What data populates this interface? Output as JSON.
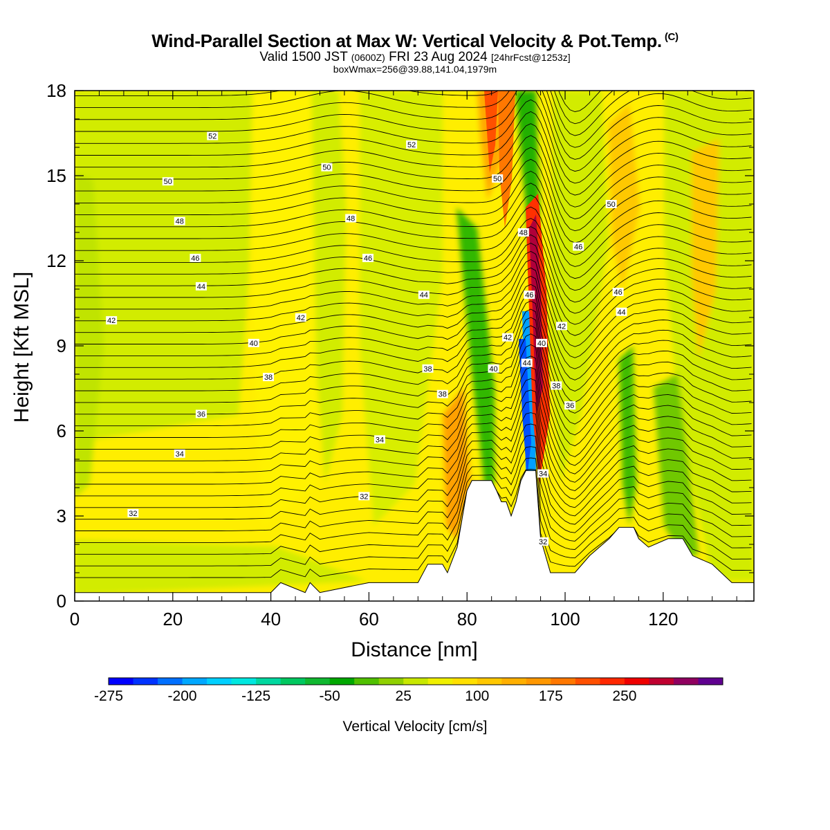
{
  "header": {
    "title": "Wind-Parallel Section at Max W: Vertical Velocity & Pot.Temp.",
    "copyright": "(C)",
    "valid_prefix": "Valid 1500 JST",
    "valid_utc": "(0600Z)",
    "valid_date": "FRI 23 Aug 2024",
    "forecast": "[24hrFcst@1253z]",
    "boxwmax": "boxWmax=256@39.88,141.04,1979m"
  },
  "chart_data": {
    "type": "heatmap",
    "xlabel": "Distance [nm]",
    "ylabel": "Height [Kft MSL]",
    "xlim": [
      0,
      138.5
    ],
    "ylim": [
      0,
      18
    ],
    "x_ticks": [
      0,
      20,
      40,
      60,
      80,
      100,
      120
    ],
    "y_ticks": [
      0,
      3,
      6,
      9,
      12,
      15,
      18
    ],
    "colorbar": {
      "title": "Vertical Velocity [cm/s]",
      "tick_labels": [
        "-275",
        "-200",
        "-125",
        "-50",
        "25",
        "100",
        "175",
        "250"
      ],
      "colors": [
        "#0000ff",
        "#0033ff",
        "#0070ff",
        "#00a8ff",
        "#00d0ff",
        "#00e8e0",
        "#00d8a0",
        "#00c860",
        "#10b830",
        "#00a800",
        "#50c000",
        "#90d000",
        "#c8e800",
        "#f0f000",
        "#ffe000",
        "#ffc800",
        "#ffb000",
        "#ff9800",
        "#ff7800",
        "#ff5000",
        "#ff2800",
        "#f00000",
        "#c00030",
        "#900060",
        "#600090"
      ]
    },
    "terrain_profile_kft": [
      [
        0,
        0.3
      ],
      [
        40,
        0.3
      ],
      [
        42,
        0.65
      ],
      [
        47,
        0.3
      ],
      [
        48,
        0.65
      ],
      [
        50,
        0.3
      ],
      [
        60,
        0.65
      ],
      [
        70,
        0.65
      ],
      [
        72,
        1.3
      ],
      [
        75,
        1.3
      ],
      [
        76,
        1.0
      ],
      [
        78,
        1.9
      ],
      [
        80,
        3.9
      ],
      [
        81,
        4.25
      ],
      [
        85,
        4.25
      ],
      [
        86,
        3.9
      ],
      [
        87,
        3.5
      ],
      [
        88,
        3.5
      ],
      [
        89,
        3.0
      ],
      [
        90,
        3.5
      ],
      [
        91,
        4.25
      ],
      [
        92,
        4.6
      ],
      [
        94,
        4.6
      ],
      [
        95,
        2.2
      ],
      [
        96,
        1.6
      ],
      [
        97,
        1.0
      ],
      [
        102,
        1.0
      ],
      [
        105,
        1.6
      ],
      [
        109,
        2.2
      ],
      [
        111,
        2.6
      ],
      [
        114,
        2.6
      ],
      [
        115,
        2.2
      ],
      [
        117,
        1.9
      ],
      [
        121,
        2.2
      ],
      [
        124,
        2.2
      ],
      [
        126,
        1.6
      ],
      [
        130,
        1.3
      ],
      [
        134,
        0.65
      ],
      [
        138.5,
        0.65
      ]
    ],
    "contour_labels": [
      {
        "text": "52",
        "x": 28.1,
        "y": 16.4
      },
      {
        "text": "52",
        "x": 68.7,
        "y": 16.1
      },
      {
        "text": "50",
        "x": 19.0,
        "y": 14.8
      },
      {
        "text": "50",
        "x": 51.4,
        "y": 15.3
      },
      {
        "text": "50",
        "x": 86.2,
        "y": 14.9
      },
      {
        "text": "50",
        "x": 109.4,
        "y": 14.0
      },
      {
        "text": "48",
        "x": 21.4,
        "y": 13.4
      },
      {
        "text": "48",
        "x": 56.3,
        "y": 13.5
      },
      {
        "text": "48",
        "x": 91.5,
        "y": 13.0
      },
      {
        "text": "46",
        "x": 24.6,
        "y": 12.1
      },
      {
        "text": "46",
        "x": 59.8,
        "y": 12.1
      },
      {
        "text": "46",
        "x": 102.7,
        "y": 12.5
      },
      {
        "text": "46",
        "x": 92.7,
        "y": 10.8
      },
      {
        "text": "46",
        "x": 110.8,
        "y": 10.9
      },
      {
        "text": "44",
        "x": 25.8,
        "y": 11.1
      },
      {
        "text": "44",
        "x": 71.2,
        "y": 10.8
      },
      {
        "text": "44",
        "x": 111.5,
        "y": 10.2
      },
      {
        "text": "44",
        "x": 92.2,
        "y": 8.4
      },
      {
        "text": "42",
        "x": 7.5,
        "y": 9.9
      },
      {
        "text": "42",
        "x": 46.1,
        "y": 10.0
      },
      {
        "text": "42",
        "x": 88.3,
        "y": 9.3
      },
      {
        "text": "42",
        "x": 99.3,
        "y": 9.7
      },
      {
        "text": "40",
        "x": 36.5,
        "y": 9.1
      },
      {
        "text": "40",
        "x": 85.4,
        "y": 8.2
      },
      {
        "text": "40",
        "x": 95.2,
        "y": 9.1
      },
      {
        "text": "38",
        "x": 39.5,
        "y": 7.9
      },
      {
        "text": "38",
        "x": 72.0,
        "y": 8.2
      },
      {
        "text": "38",
        "x": 75.0,
        "y": 7.3
      },
      {
        "text": "38",
        "x": 98.2,
        "y": 7.6
      },
      {
        "text": "36",
        "x": 25.8,
        "y": 6.6
      },
      {
        "text": "36",
        "x": 101.0,
        "y": 6.9
      },
      {
        "text": "34",
        "x": 21.4,
        "y": 5.2
      },
      {
        "text": "34",
        "x": 62.2,
        "y": 5.7
      },
      {
        "text": "34",
        "x": 95.5,
        "y": 4.5
      },
      {
        "text": "32",
        "x": 11.9,
        "y": 3.1
      },
      {
        "text": "32",
        "x": 59.0,
        "y": 3.7
      },
      {
        "text": "32",
        "x": 95.5,
        "y": 2.1
      }
    ]
  }
}
